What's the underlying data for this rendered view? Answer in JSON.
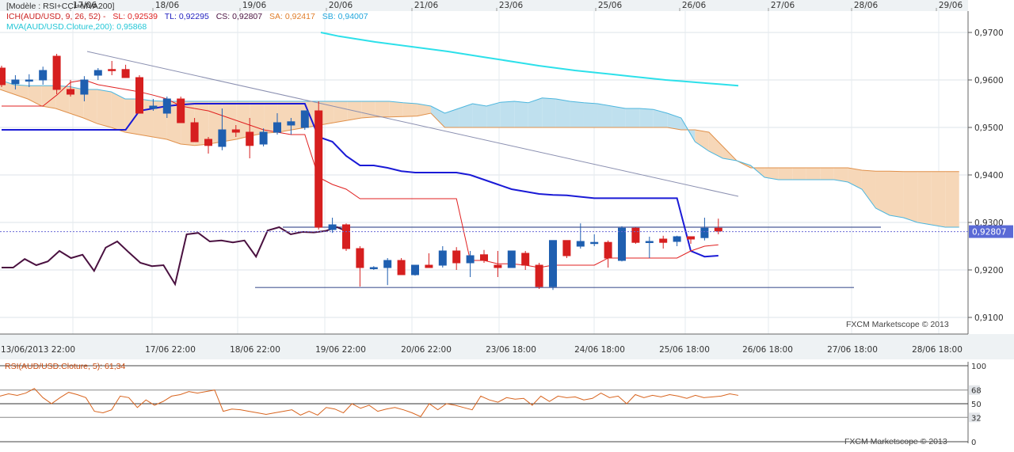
{
  "chart_data": [
    {
      "type": "candlestick",
      "symbol": "AUD/USD",
      "legend": {
        "model": "[Modèle : RSI+CCI+MVA200]",
        "ich": "ICH(AUD/USD, 9, 26, 52) -",
        "sl": "SL: 0,92539",
        "tl": "TL: 0,92295",
        "cs": "CS: 0,92807",
        "sa": "SA: 0,92417",
        "sb": "SB: 0,94007",
        "mva": "MVA(AUD/USD.Cloture,200): 0,95868"
      },
      "last_price_label": "0,92807",
      "watermark": "FXCM Marketscope © 2013",
      "date_labels_top": [
        "17/06",
        "18/06",
        "19/06",
        "20/06",
        "21/06",
        "23/06",
        "25/06",
        "26/06",
        "27/06",
        "28/06",
        "29/06"
      ],
      "time_labels_bottom": [
        "13/06/2013 22:00",
        "17/06 22:00",
        "18/06 22:00",
        "19/06 22:00",
        "20/06 22:00",
        "23/06 18:00",
        "24/06 18:00",
        "25/06 18:00",
        "26/06 18:00",
        "27/06 18:00",
        "28/06 18:00"
      ],
      "y_ticks": [
        "0,9700",
        "0,9600",
        "0,9500",
        "0,9400",
        "0,9300",
        "0,9200",
        "0,9100"
      ],
      "ylim": [
        0.9065,
        0.9745
      ],
      "grid": true,
      "candles": [
        [
          0.9625,
          0.963,
          0.9585,
          0.959
        ],
        [
          0.9592,
          0.961,
          0.958,
          0.96
        ],
        [
          0.9598,
          0.9612,
          0.9585,
          0.96
        ],
        [
          0.96,
          0.9628,
          0.959,
          0.962
        ],
        [
          0.965,
          0.9655,
          0.957,
          0.958
        ],
        [
          0.958,
          0.96,
          0.9565,
          0.957
        ],
        [
          0.957,
          0.9608,
          0.9555,
          0.96
        ],
        [
          0.961,
          0.9625,
          0.96,
          0.962
        ],
        [
          0.9622,
          0.964,
          0.961,
          0.962
        ],
        [
          0.9622,
          0.9632,
          0.9605,
          0.9605
        ],
        [
          0.9605,
          0.961,
          0.953,
          0.953
        ],
        [
          0.954,
          0.956,
          0.9535,
          0.9545
        ],
        [
          0.953,
          0.9565,
          0.952,
          0.956
        ],
        [
          0.956,
          0.9565,
          0.951,
          0.951
        ],
        [
          0.951,
          0.952,
          0.947,
          0.947
        ],
        [
          0.9475,
          0.948,
          0.9445,
          0.9462
        ],
        [
          0.946,
          0.954,
          0.9452,
          0.9495
        ],
        [
          0.9495,
          0.9505,
          0.948,
          0.949
        ],
        [
          0.949,
          0.952,
          0.9435,
          0.9462
        ],
        [
          0.9465,
          0.9498,
          0.946,
          0.949
        ],
        [
          0.949,
          0.953,
          0.9485,
          0.951
        ],
        [
          0.9505,
          0.952,
          0.9485,
          0.9512
        ],
        [
          0.95,
          0.9535,
          0.9495,
          0.9535
        ],
        [
          0.9535,
          0.9555,
          0.9285,
          0.929
        ],
        [
          0.9285,
          0.931,
          0.9278,
          0.9295
        ],
        [
          0.9295,
          0.9298,
          0.924,
          0.9245
        ],
        [
          0.9245,
          0.925,
          0.9165,
          0.9205
        ],
        [
          0.9205,
          0.9208,
          0.92,
          0.9205
        ],
        [
          0.9205,
          0.9225,
          0.9168,
          0.922
        ],
        [
          0.922,
          0.9225,
          0.919,
          0.919
        ],
        [
          0.919,
          0.921,
          0.9188,
          0.921
        ],
        [
          0.921,
          0.9235,
          0.9205,
          0.9205
        ],
        [
          0.921,
          0.925,
          0.9205,
          0.924
        ],
        [
          0.924,
          0.9248,
          0.92,
          0.9215
        ],
        [
          0.9215,
          0.924,
          0.9185,
          0.923
        ],
        [
          0.9232,
          0.9242,
          0.9215,
          0.922
        ],
        [
          0.921,
          0.924,
          0.9185,
          0.9205
        ],
        [
          0.9205,
          0.924,
          0.9205,
          0.924
        ],
        [
          0.9235,
          0.924,
          0.92,
          0.921
        ],
        [
          0.921,
          0.9215,
          0.916,
          0.9165
        ],
        [
          0.9165,
          0.9262,
          0.9158,
          0.9262
        ],
        [
          0.9262,
          0.9262,
          0.9225,
          0.923
        ],
        [
          0.925,
          0.9298,
          0.9245,
          0.926
        ],
        [
          0.9258,
          0.9275,
          0.925,
          0.9258
        ],
        [
          0.9258,
          0.9262,
          0.9205,
          0.9225
        ],
        [
          0.922,
          0.9292,
          0.9218,
          0.9288
        ],
        [
          0.9288,
          0.929,
          0.9255,
          0.9258
        ],
        [
          0.9258,
          0.927,
          0.9225,
          0.926
        ],
        [
          0.9265,
          0.9272,
          0.9245,
          0.9258
        ],
        [
          0.926,
          0.9272,
          0.925,
          0.927
        ],
        [
          0.927,
          0.927,
          0.9255,
          0.9265
        ],
        [
          0.9268,
          0.931,
          0.9262,
          0.9288
        ],
        [
          0.9288,
          0.9308,
          0.9275,
          0.9282
        ]
      ],
      "kumo_upper": [
        0.96,
        0.959,
        0.9588,
        0.9588,
        0.9588,
        0.9586,
        0.958,
        0.958,
        0.9575,
        0.956,
        0.956,
        0.9556,
        0.9555,
        0.9555,
        0.9555,
        0.9555,
        0.9555,
        0.9555,
        0.9555,
        0.9555,
        0.9555,
        0.9555,
        0.9555,
        0.9555,
        0.9555,
        0.9555,
        0.9555,
        0.9555,
        0.9555,
        0.9552,
        0.955,
        0.9545,
        0.953,
        0.954,
        0.955,
        0.9545,
        0.9553,
        0.9555,
        0.9552,
        0.9562,
        0.956,
        0.9555,
        0.9552,
        0.955,
        0.9545,
        0.954,
        0.954,
        0.9538,
        0.953,
        0.952,
        0.947,
        0.945,
        0.9435,
        0.943,
        0.942,
        0.9395,
        0.939,
        0.939,
        0.939,
        0.939,
        0.939,
        0.9385,
        0.937,
        0.933,
        0.9315,
        0.931,
        0.93,
        0.9295,
        0.929,
        0.929
      ],
      "kumo_lower": [
        0.958,
        0.957,
        0.956,
        0.9545,
        0.954,
        0.953,
        0.952,
        0.9508,
        0.95,
        0.949,
        0.9485,
        0.948,
        0.9475,
        0.9465,
        0.9462,
        0.9465,
        0.947,
        0.9475,
        0.9482,
        0.9488,
        0.949,
        0.9495,
        0.95,
        0.9505,
        0.951,
        0.9515,
        0.952,
        0.9522,
        0.9522,
        0.9523,
        0.9524,
        0.953,
        0.95,
        0.95,
        0.95,
        0.95,
        0.95,
        0.95,
        0.95,
        0.95,
        0.95,
        0.95,
        0.95,
        0.95,
        0.95,
        0.95,
        0.95,
        0.95,
        0.95,
        0.9495,
        0.9495,
        0.949,
        0.946,
        0.943,
        0.9415,
        0.9415,
        0.9415,
        0.9415,
        0.9415,
        0.9415,
        0.9415,
        0.9415,
        0.941,
        0.9408,
        0.9408,
        0.9407,
        0.9407,
        0.9407,
        0.9407,
        0.9407
      ],
      "tenkan_sl": [
        0.9545,
        0.9545,
        0.9545,
        0.9545,
        0.9568,
        0.9595,
        0.96,
        0.959,
        0.9585,
        0.958,
        0.9575,
        0.9568,
        0.956,
        0.9545,
        0.954,
        0.9535,
        0.9525,
        0.9515,
        0.9505,
        0.9495,
        0.949,
        0.9485,
        0.9485,
        0.9395,
        0.938,
        0.937,
        0.935,
        0.935,
        0.935,
        0.935,
        0.935,
        0.935,
        0.935,
        0.935,
        0.922,
        0.922,
        0.9213,
        0.9213,
        0.921,
        0.9205,
        0.921,
        0.921,
        0.921,
        0.921,
        0.9225,
        0.9225,
        0.9225,
        0.9225,
        0.9225,
        0.9225,
        0.924,
        0.925,
        0.9253
      ],
      "kijun_tl": [
        0.9495,
        0.9495,
        0.9495,
        0.9495,
        0.9495,
        0.9495,
        0.9495,
        0.9495,
        0.9495,
        0.9495,
        0.9535,
        0.954,
        0.9545,
        0.9548,
        0.955,
        0.955,
        0.955,
        0.955,
        0.955,
        0.955,
        0.955,
        0.955,
        0.955,
        0.948,
        0.947,
        0.944,
        0.942,
        0.942,
        0.9415,
        0.9408,
        0.9405,
        0.9405,
        0.9405,
        0.9405,
        0.94,
        0.939,
        0.938,
        0.937,
        0.9365,
        0.936,
        0.9358,
        0.9357,
        0.9354,
        0.9351,
        0.9351,
        0.9351,
        0.9351,
        0.9351,
        0.9351,
        0.9351,
        0.924,
        0.9228,
        0.923
      ],
      "chikou_cs": [
        0.9205,
        0.9205,
        0.9223,
        0.921,
        0.9218,
        0.924,
        0.9225,
        0.9232,
        0.9198,
        0.9247,
        0.926,
        0.9237,
        0.9215,
        0.9208,
        0.921,
        0.917,
        0.9275,
        0.9278,
        0.926,
        0.9262,
        0.9258,
        0.9262,
        0.9228,
        0.9283,
        0.929,
        0.9275,
        0.928,
        0.9279,
        0.9282,
        0.929,
        0.928
      ],
      "mva200": [
        0.97,
        0.9692,
        0.9686,
        0.968,
        0.9675,
        0.967,
        0.9665,
        0.966,
        0.9654,
        0.9648,
        0.9642,
        0.9636,
        0.963,
        0.9625,
        0.962,
        0.9616,
        0.9612,
        0.9608,
        0.9604,
        0.96,
        0.9597,
        0.9594,
        0.9591,
        0.9588
      ],
      "horizontal_lines": [
        0.929,
        0.9163
      ],
      "trendline": [
        [
          0.966
        ],
        [
          0.9355
        ]
      ]
    },
    {
      "type": "line",
      "title": "RSI(AUD/USD.Cloture, 5): 61,34",
      "y_ticks": [
        "100",
        "68",
        "50",
        "32",
        "0"
      ],
      "levels": [
        100,
        68,
        50,
        32,
        0
      ],
      "ylim": [
        0,
        100
      ],
      "watermark": "FXCM Marketscope © 2013",
      "values": [
        60,
        63,
        61,
        64,
        70,
        58,
        50,
        58,
        65,
        62,
        58,
        40,
        38,
        42,
        60,
        58,
        45,
        55,
        48,
        53,
        60,
        62,
        66,
        64,
        66,
        68,
        40,
        43,
        42,
        40,
        38,
        36,
        38,
        40,
        42,
        35,
        40,
        35,
        45,
        43,
        38,
        50,
        44,
        48,
        40,
        43,
        45,
        42,
        38,
        33,
        50,
        42,
        50,
        48,
        45,
        42,
        60,
        55,
        52,
        58,
        56,
        57,
        48,
        60,
        53,
        60,
        58,
        59,
        55,
        57,
        64,
        58,
        60,
        50,
        62,
        58,
        61,
        59,
        62,
        60,
        57,
        61,
        58,
        59,
        60,
        63,
        61
      ]
    }
  ]
}
